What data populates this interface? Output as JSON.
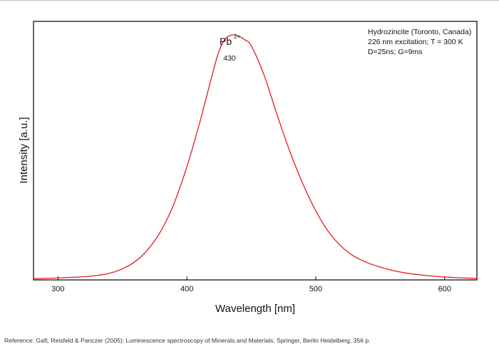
{
  "chart_data": {
    "type": "line",
    "title": "",
    "xlabel": "Wavelength [nm]",
    "ylabel": "Intensity [a.u.]",
    "xlim": [
      281,
      625
    ],
    "ylim": [
      0,
      1.05
    ],
    "x_ticks": [
      300,
      400,
      500,
      600
    ],
    "grid": false,
    "series": [
      {
        "color": "#e8191e",
        "x": [
          281,
          300,
          320,
          330,
          340,
          350,
          360,
          370,
          380,
          390,
          400,
          410,
          420,
          425,
          430,
          435,
          440,
          445,
          450,
          460,
          470,
          480,
          490,
          500,
          510,
          520,
          530,
          540,
          550,
          560,
          570,
          580,
          590,
          600,
          610,
          620,
          625
        ],
        "y": [
          0.005,
          0.008,
          0.013,
          0.018,
          0.027,
          0.045,
          0.075,
          0.125,
          0.2,
          0.31,
          0.46,
          0.64,
          0.84,
          0.93,
          0.98,
          0.995,
          0.99,
          0.975,
          0.95,
          0.83,
          0.67,
          0.52,
          0.39,
          0.28,
          0.195,
          0.135,
          0.095,
          0.07,
          0.052,
          0.038,
          0.028,
          0.021,
          0.016,
          0.012,
          0.009,
          0.007,
          0.006
        ]
      }
    ],
    "annotations": {
      "sample_lines": [
        "Hydrozincite (Toronto, Canada)",
        "226 nm excitation; T = 300 K",
        "D=25ns; G=9ms"
      ],
      "peak_ion": "Pb",
      "peak_ion_charge": "2+",
      "peak_wavelength": "430"
    }
  },
  "reference": "Reference: Gaft, Reisfeld & Panczer (2005): Luminescence spectroscopy of Minerals and Materials, Springer, Berlin Heidelberg, 356 p."
}
